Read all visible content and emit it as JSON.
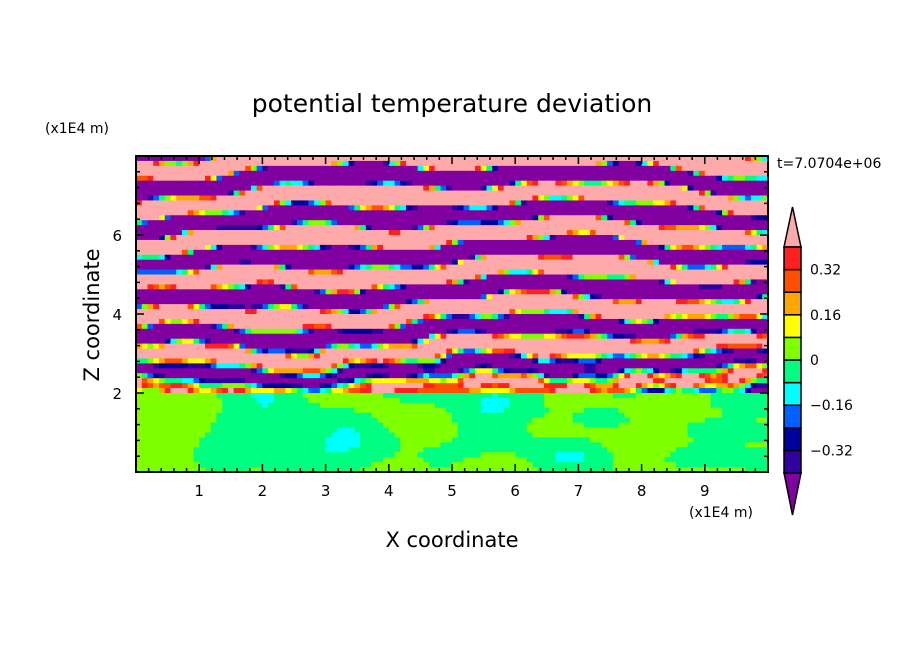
{
  "chart_data": {
    "type": "heatmap",
    "subtype": "filled-contour",
    "title": "potential temperature deviation",
    "xlabel": "X coordinate",
    "ylabel": "Z coordinate",
    "x_unit_label": "(x1E4 m)",
    "y_unit_label": "(x1E4 m)",
    "time_label": "t=7.0704e+06",
    "xlim": [
      0,
      10
    ],
    "ylim": [
      0,
      8
    ],
    "x_ticks": [
      1,
      2,
      3,
      4,
      5,
      6,
      7,
      8,
      9
    ],
    "x_tick_labels": [
      "1",
      "2",
      "3",
      "4",
      "5",
      "6",
      "7",
      "8",
      "9"
    ],
    "y_ticks": [
      2,
      4,
      6
    ],
    "y_tick_labels": [
      "2",
      "4",
      "6"
    ],
    "levels": [
      -0.4,
      -0.32,
      -0.24,
      -0.16,
      -0.08,
      0,
      0.08,
      0.16,
      0.24,
      0.32,
      0.4
    ],
    "colorbar_labels": [
      {
        "value": 0.32,
        "text": "0.32"
      },
      {
        "value": 0.16,
        "text": "0.16"
      },
      {
        "value": 0,
        "text": "0"
      },
      {
        "value": -0.16,
        "text": "−0.16"
      },
      {
        "value": -0.32,
        "text": "−0.32"
      }
    ],
    "colors": {
      "under": "#8000a0",
      "bins": [
        "#3000a0",
        "#0000a0",
        "#0060ff",
        "#00ffff",
        "#00ff80",
        "#80ff00",
        "#ffff00",
        "#ffa500",
        "#ff5000",
        "#ff2020"
      ],
      "over": "#ffaaaa"
    },
    "description_regions": {
      "upper": "alternating strong positive/negative layers above z≈4.5",
      "middle": "turbulent mixed layer between z≈2 and z≈4.5",
      "lower": "near-zero deviation below z≈2"
    }
  }
}
